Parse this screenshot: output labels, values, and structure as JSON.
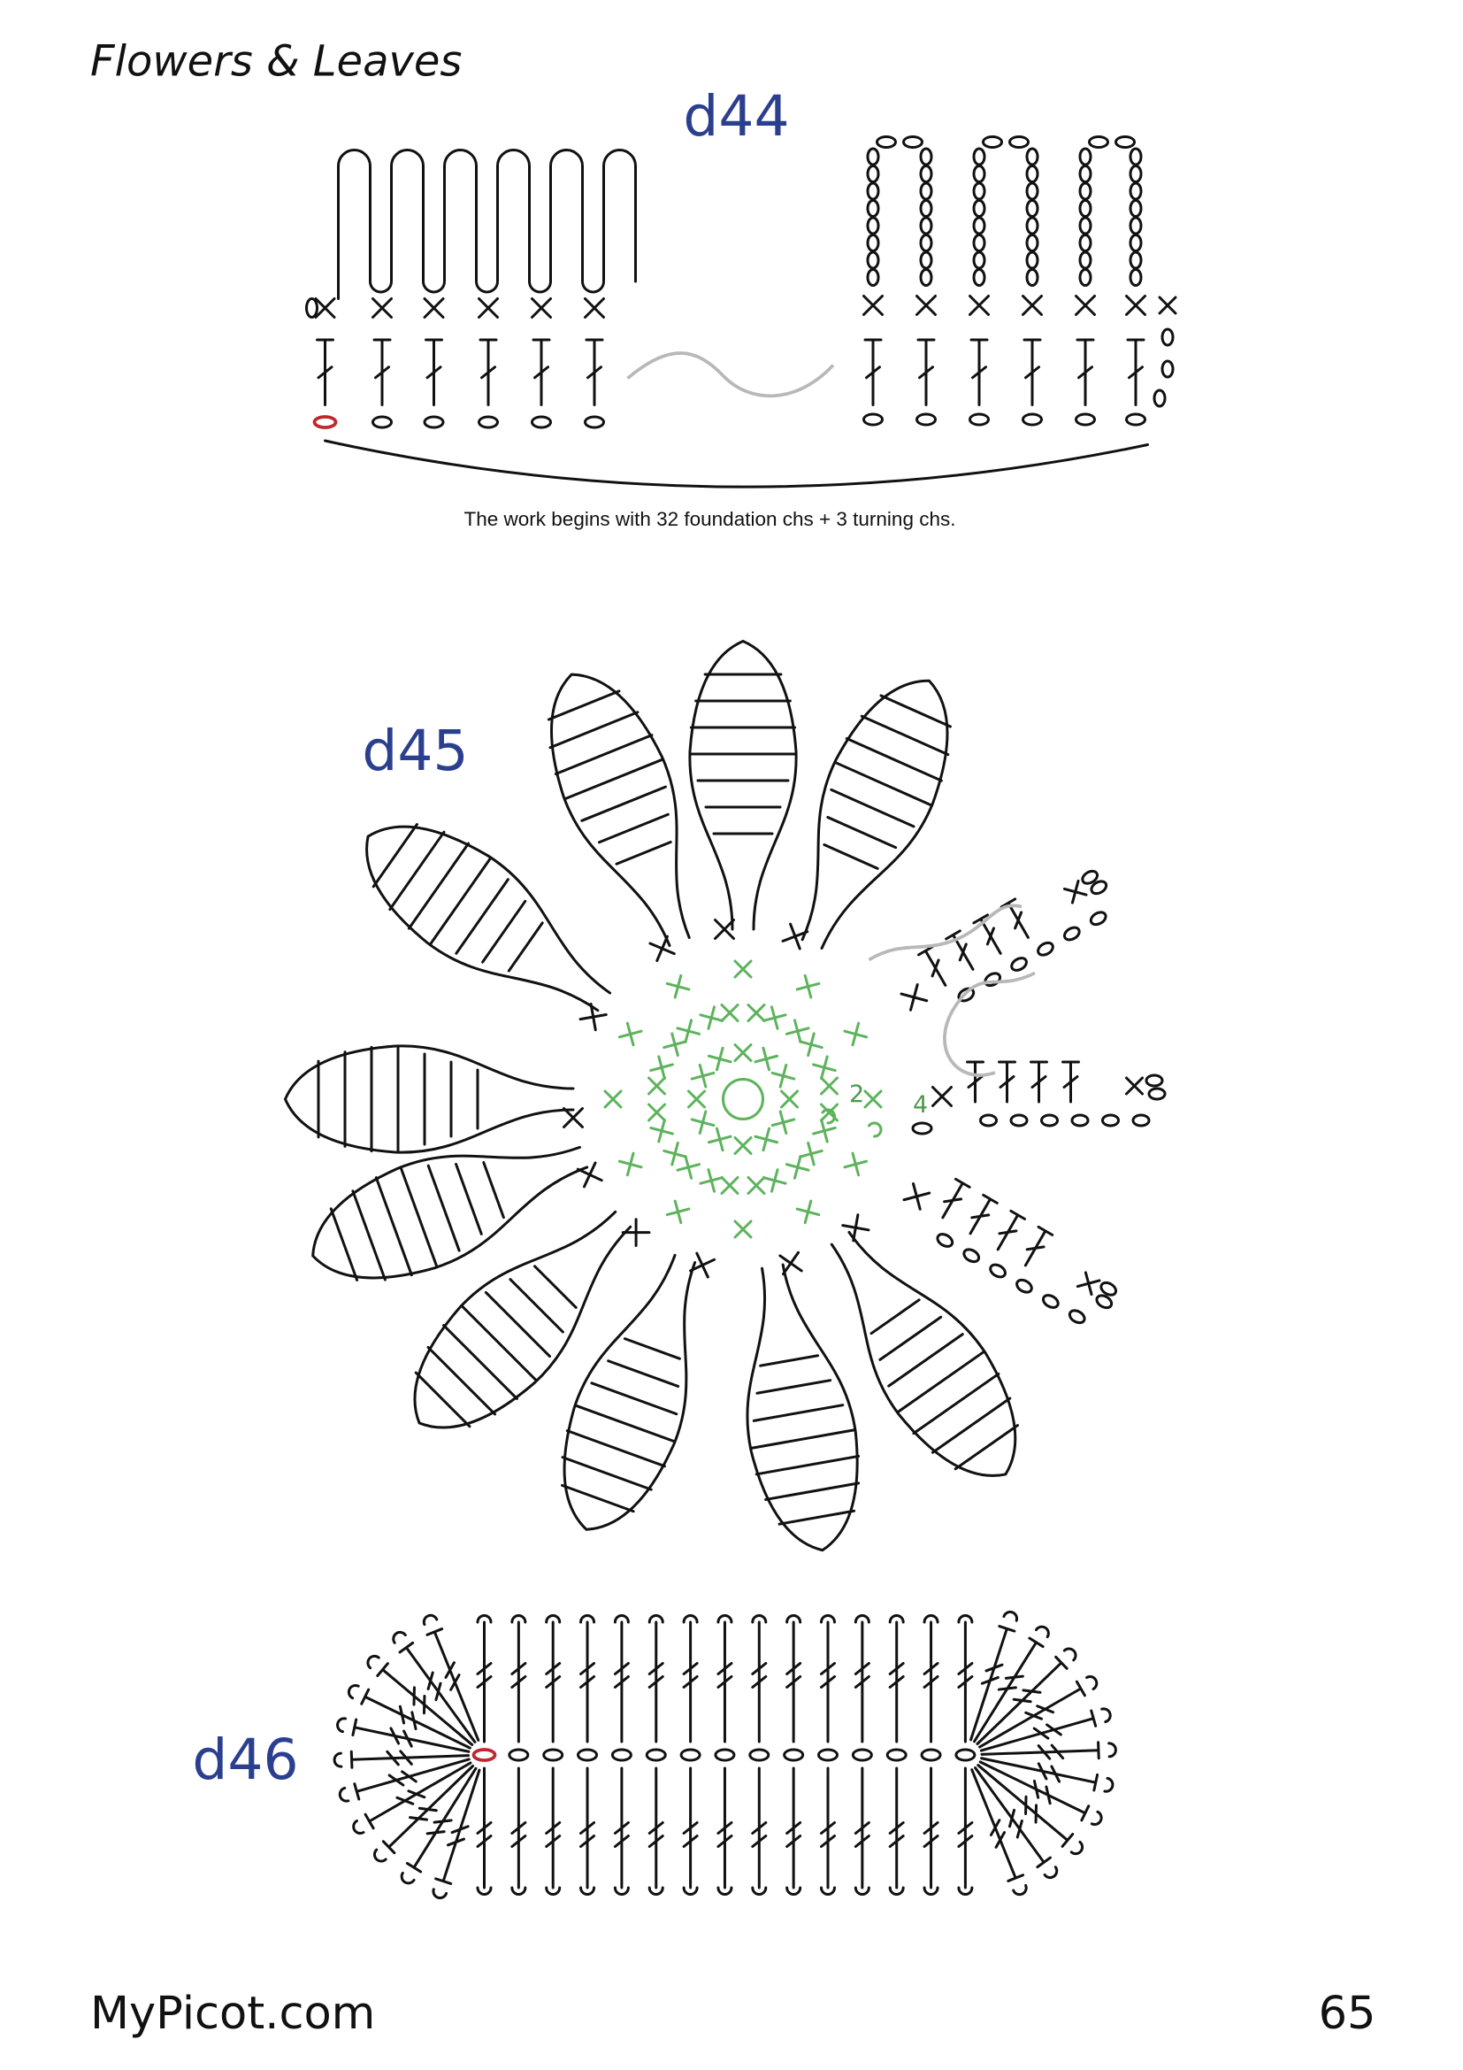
{
  "header": {
    "title": "Flowers & Leaves"
  },
  "diagrams": [
    {
      "label": "d44",
      "caption": "The work begins with 32 foundation chs + 3 turning chs."
    },
    {
      "label": "d45",
      "markers": [
        "2",
        "4"
      ]
    },
    {
      "label": "d46"
    }
  ],
  "footer": {
    "site": "MyPicot.com",
    "page": "65"
  }
}
